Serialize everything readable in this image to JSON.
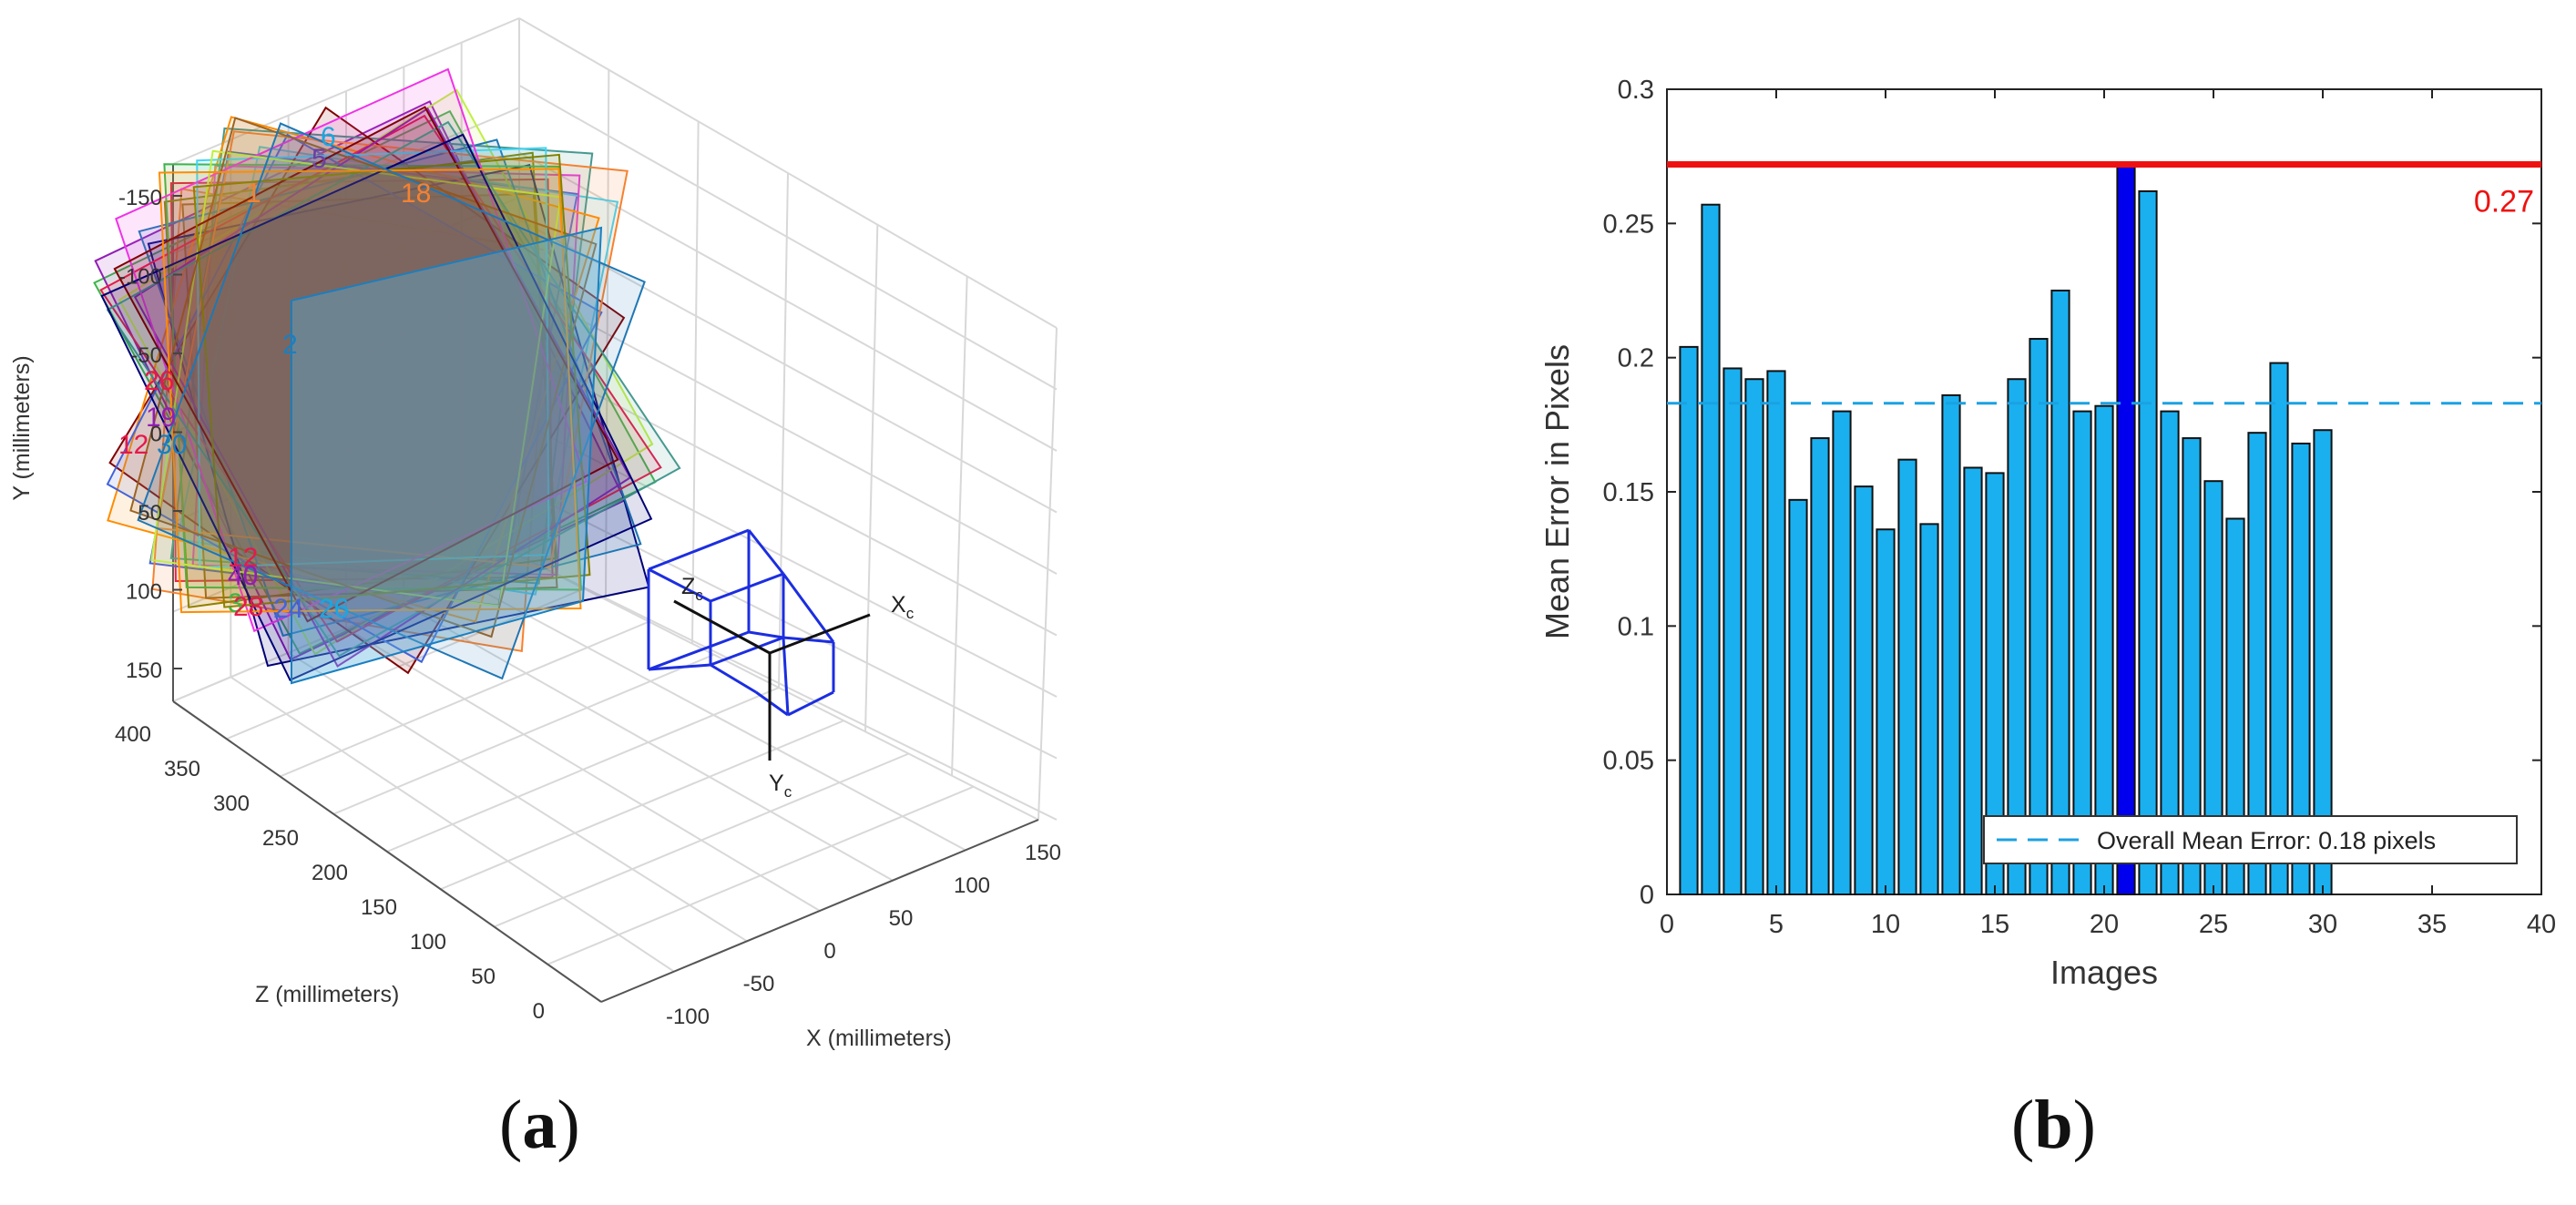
{
  "chart_data": [
    {
      "panel": "a",
      "type": "other",
      "description_kind": "extrinsics-3d",
      "xlabel": "X (millimeters)",
      "ylabel": "Y (millimeters)",
      "zlabel": "Z (millimeters)",
      "x_ticks": [
        "-100",
        "-50",
        "0",
        "50",
        "100",
        "150"
      ],
      "y_ticks": [
        "-150",
        "-100",
        "-50",
        "0",
        "50",
        "100",
        "150"
      ],
      "z_ticks": [
        "0",
        "50",
        "100",
        "150",
        "200",
        "250",
        "300",
        "350",
        "400"
      ],
      "camera_labels": {
        "xc": "X",
        "xc_sub": "c",
        "yc": "Y",
        "yc_sub": "c",
        "zc": "Z",
        "zc_sub": "c"
      },
      "visible_board_labels": [
        "6",
        "5",
        "1",
        "18",
        "2",
        "26",
        "19",
        "12",
        "30",
        "12",
        "40",
        "3",
        "28",
        "24",
        "26"
      ],
      "colors": [
        "#e6194b",
        "#3cb44b",
        "#4363d8",
        "#f58231",
        "#911eb4",
        "#42d4f4",
        "#f032e6",
        "#bfef45",
        "#469990",
        "#9A6324",
        "#800000",
        "#808000",
        "#000075",
        "#ff8c00",
        "#1f77b4"
      ]
    },
    {
      "panel": "b",
      "type": "bar",
      "xlabel": "Images",
      "ylabel": "Mean Error in Pixels",
      "xlim": [
        0,
        40
      ],
      "ylim": [
        0,
        0.3
      ],
      "x_ticks": [
        "0",
        "5",
        "10",
        "15",
        "20",
        "25",
        "30",
        "35",
        "40"
      ],
      "y_ticks": [
        "0",
        "0.05",
        "0.1",
        "0.15",
        "0.2",
        "0.25",
        "0.3"
      ],
      "categories": [
        1,
        2,
        3,
        4,
        5,
        6,
        7,
        8,
        9,
        10,
        11,
        12,
        13,
        14,
        15,
        16,
        17,
        18,
        19,
        20,
        21,
        22,
        23,
        24,
        25,
        26,
        27,
        28,
        29,
        30
      ],
      "values": [
        0.204,
        0.257,
        0.196,
        0.192,
        0.195,
        0.147,
        0.17,
        0.18,
        0.152,
        0.136,
        0.162,
        0.138,
        0.186,
        0.159,
        0.157,
        0.192,
        0.207,
        0.225,
        0.18,
        0.182,
        0.272,
        0.262,
        0.18,
        0.17,
        0.154,
        0.14,
        0.172,
        0.198,
        0.168,
        0.173
      ],
      "highlighted_bar": 21,
      "max_line": {
        "value": 0.272,
        "label": "0.27"
      },
      "mean_line": {
        "value": 0.183
      },
      "legend": {
        "text": "Overall Mean Error: 0.18 pixels",
        "position": "bottom-right"
      },
      "colors": {
        "bar": "#1ab0f0",
        "bar_highlight": "#0000ee",
        "max_line": "#ee1111",
        "mean_line": "#1ba1e2"
      }
    }
  ],
  "captions": {
    "a": {
      "open": "(",
      "letter": "a",
      "close": ")"
    },
    "b": {
      "open": "(",
      "letter": "b",
      "close": ")"
    }
  }
}
